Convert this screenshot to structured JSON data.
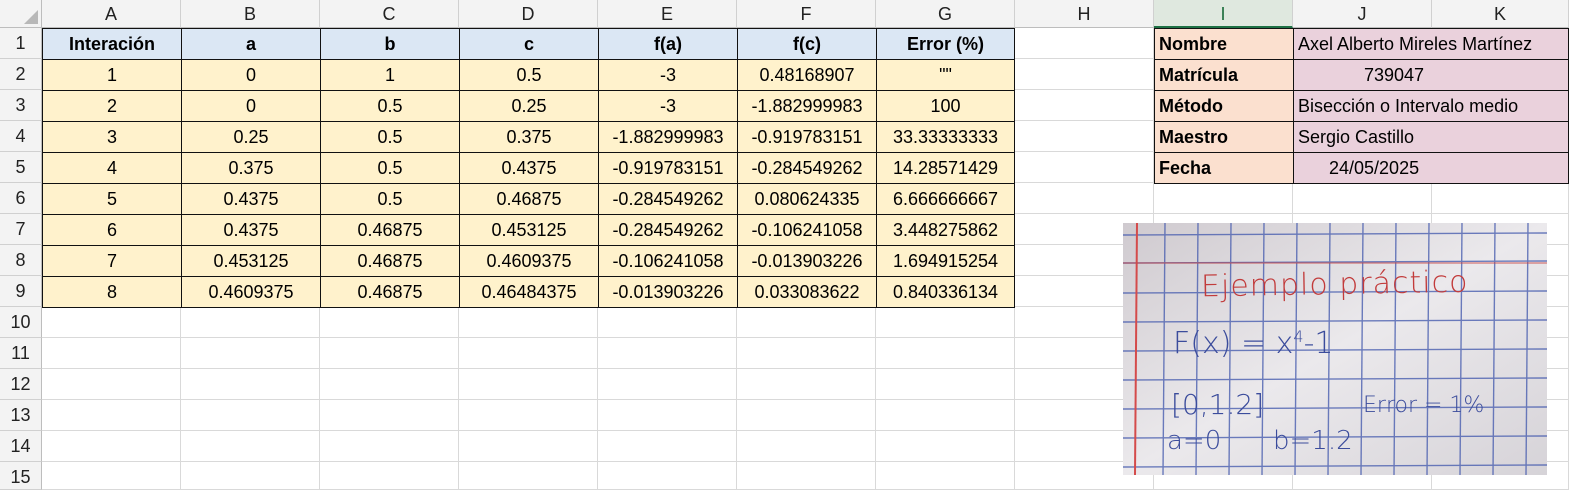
{
  "columns": [
    "A",
    "B",
    "C",
    "D",
    "E",
    "F",
    "G",
    "H",
    "I",
    "J",
    "K"
  ],
  "selected_column": "I",
  "rows": [
    "1",
    "2",
    "3",
    "4",
    "5",
    "6",
    "7",
    "8",
    "9",
    "10",
    "11",
    "12",
    "13",
    "14",
    "15"
  ],
  "table": {
    "headers": [
      "Interación",
      "a",
      "b",
      "c",
      "f(a)",
      "f(c)",
      "Error (%)"
    ],
    "data": [
      [
        "1",
        "0",
        "1",
        "0.5",
        "-3",
        "0.48168907",
        "\"\""
      ],
      [
        "2",
        "0",
        "0.5",
        "0.25",
        "-3",
        "-1.882999983",
        "100"
      ],
      [
        "3",
        "0.25",
        "0.5",
        "0.375",
        "-1.882999983",
        "-0.919783151",
        "33.33333333"
      ],
      [
        "4",
        "0.375",
        "0.5",
        "0.4375",
        "-0.919783151",
        "-0.284549262",
        "14.28571429"
      ],
      [
        "5",
        "0.4375",
        "0.5",
        "0.46875",
        "-0.284549262",
        "0.080624335",
        "6.666666667"
      ],
      [
        "6",
        "0.4375",
        "0.46875",
        "0.453125",
        "-0.284549262",
        "-0.106241058",
        "3.448275862"
      ],
      [
        "7",
        "0.453125",
        "0.46875",
        "0.4609375",
        "-0.106241058",
        "-0.013903226",
        "1.694915254"
      ],
      [
        "8",
        "0.4609375",
        "0.46875",
        "0.46484375",
        "-0.013903226",
        "0.033083622",
        "0.840336134"
      ]
    ]
  },
  "info": [
    {
      "label": "Nombre",
      "value": "Axel Alberto Mireles Martínez"
    },
    {
      "label": "Matrícula",
      "value": "739047"
    },
    {
      "label": "Método",
      "value": "Bisección o Intervalo medio"
    },
    {
      "label": "Maestro",
      "value": "Sergio Castillo"
    },
    {
      "label": "Fecha",
      "value": "24/05/2025"
    }
  ],
  "photo": {
    "title": "Ejemplo práctico",
    "func_left": "F(x) = x",
    "func_exp": "4",
    "func_right": "-1",
    "interval": "[0,1.2]",
    "error": "Error = 1%",
    "a_val": "a=0",
    "b_val": "b=1.2"
  }
}
